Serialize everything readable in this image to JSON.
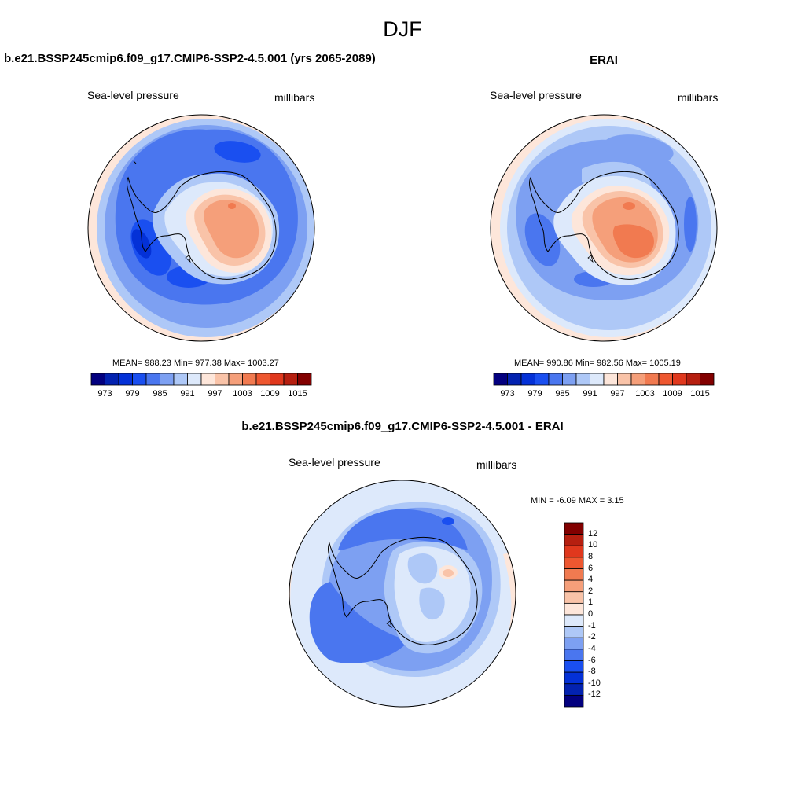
{
  "page": {
    "title": "DJF"
  },
  "panels": {
    "model": {
      "title": "b.e21.BSSP245cmip6.f09_g17.CMIP6-SSP2-4.5.001 (yrs 2065-2089)",
      "left_label": "Sea-level pressure",
      "right_label": "millibars",
      "stats": "MEAN= 988.23  Min= 977.38  Max= 1003.27"
    },
    "obs": {
      "title": "ERAI",
      "left_label": "Sea-level pressure",
      "right_label": "millibars",
      "stats": "MEAN= 990.86  Min= 982.56  Max= 1005.19"
    },
    "diff": {
      "title": "b.e21.BSSP245cmip6.f09_g17.CMIP6-SSP2-4.5.001 - ERAI",
      "left_label": "Sea-level pressure",
      "right_label": "millibars",
      "stats": "MIN =  -6.09 MAX =   3.15"
    }
  },
  "colorbars": {
    "horizontal": {
      "ticks": [
        "973",
        "979",
        "985",
        "991",
        "997",
        "1003",
        "1009",
        "1015"
      ],
      "colors": [
        "#03007f",
        "#0322b0",
        "#0431d7",
        "#1a4ff0",
        "#4a76ef",
        "#7da0f2",
        "#aec8f7",
        "#dde9fb",
        "#fde6da",
        "#f9c3a8",
        "#f59f7a",
        "#f17a50",
        "#ee5730",
        "#e0381d",
        "#b61f10",
        "#820000"
      ]
    },
    "vertical": {
      "ticks": [
        "12",
        "10",
        "8",
        "6",
        "4",
        "2",
        "1",
        "0",
        "-1",
        "-2",
        "-4",
        "-6",
        "-8",
        "-10",
        "-12"
      ],
      "colors_top_to_bottom": [
        "#820000",
        "#b61f10",
        "#e0381d",
        "#ee5730",
        "#f17a50",
        "#f59f7a",
        "#f9c3a8",
        "#fde6da",
        "#dde9fb",
        "#aec8f7",
        "#7da0f2",
        "#4a76ef",
        "#1a4ff0",
        "#0431d7",
        "#0322b0",
        "#03007f"
      ]
    }
  }
}
